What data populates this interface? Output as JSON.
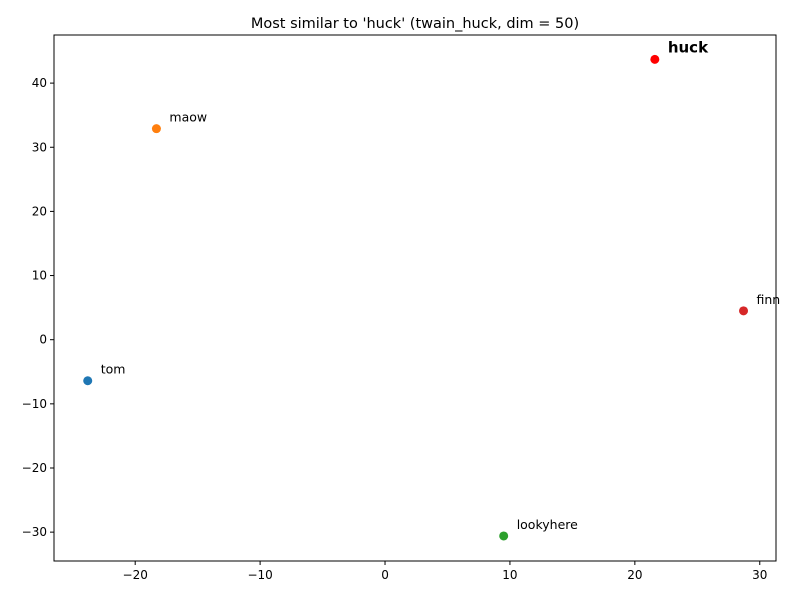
{
  "chart_data": {
    "type": "scatter",
    "title": "Most similar to 'huck' (twain_huck, dim = 50)",
    "xlabel": "",
    "ylabel": "",
    "xlim": [
      -26.5,
      31.3
    ],
    "ylim": [
      -34.5,
      47.5
    ],
    "xticks": [
      -20,
      -10,
      0,
      10,
      20,
      30
    ],
    "yticks": [
      -30,
      -20,
      -10,
      0,
      10,
      20,
      30,
      40
    ],
    "xtick_labels": [
      "−20",
      "−10",
      "0",
      "10",
      "20",
      "30"
    ],
    "ytick_labels": [
      "−30",
      "−20",
      "−10",
      "0",
      "10",
      "20",
      "30",
      "40"
    ],
    "grid": false,
    "points": [
      {
        "label": "tom",
        "x": -23.8,
        "y": -6.4,
        "color": "#1f77b4",
        "highlight": false
      },
      {
        "label": "maow",
        "x": -18.3,
        "y": 32.9,
        "color": "#ff7f0e",
        "highlight": false
      },
      {
        "label": "lookyhere",
        "x": 9.5,
        "y": -30.6,
        "color": "#2ca02c",
        "highlight": false
      },
      {
        "label": "finn",
        "x": 28.7,
        "y": 4.5,
        "color": "#d62728",
        "highlight": false
      },
      {
        "label": "huck",
        "x": 21.6,
        "y": 43.7,
        "color": "#ff0000",
        "highlight": true
      }
    ]
  }
}
